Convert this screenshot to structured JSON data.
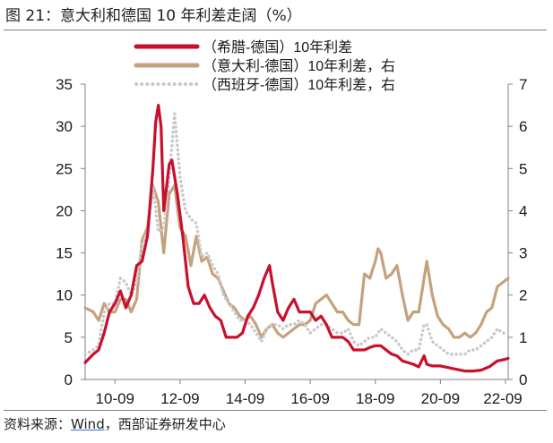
{
  "figure": {
    "title": "图 21：意大利和德国 10 年利差走阔（%）",
    "source_prefix": "资料来源：",
    "source_link": "Wind",
    "source_suffix": "，西部证券研发中心"
  },
  "chart_data": {
    "type": "line",
    "title": "图 21：意大利和德国 10 年利差走阔（%）",
    "x_ticks": [
      "10-09",
      "12-09",
      "14-09",
      "16-09",
      "18-09",
      "20-09",
      "22-09"
    ],
    "x_range": [
      "2009-10",
      "2022-10"
    ],
    "y_left": {
      "min": 0,
      "max": 35,
      "ticks": [
        0,
        5,
        10,
        15,
        20,
        25,
        30,
        35
      ]
    },
    "y_right": {
      "min": 0,
      "max": 7,
      "ticks": [
        0,
        1,
        2,
        3,
        4,
        5,
        6,
        7
      ]
    },
    "grid": false,
    "legend_placement": "top-center",
    "series": [
      {
        "name": "（希腊-德国）10年利差",
        "axis": "left",
        "color": "#c8102e",
        "style": "solid",
        "points": [
          [
            "2009-10",
            2.0
          ],
          [
            "2010-01",
            3.0
          ],
          [
            "2010-03",
            3.5
          ],
          [
            "2010-05",
            5.5
          ],
          [
            "2010-07",
            8.0
          ],
          [
            "2010-09",
            9.0
          ],
          [
            "2010-11",
            10.5
          ],
          [
            "2011-01",
            8.5
          ],
          [
            "2011-03",
            10.0
          ],
          [
            "2011-05",
            13.5
          ],
          [
            "2011-07",
            14.0
          ],
          [
            "2011-09",
            17.0
          ],
          [
            "2011-11",
            25.0
          ],
          [
            "2011-12",
            30.5
          ],
          [
            "2012-01",
            32.5
          ],
          [
            "2012-02",
            30.0
          ],
          [
            "2012-03",
            20.0
          ],
          [
            "2012-05",
            25.5
          ],
          [
            "2012-06",
            26.0
          ],
          [
            "2012-08",
            22.0
          ],
          [
            "2012-10",
            17.0
          ],
          [
            "2012-12",
            11.0
          ],
          [
            "2013-02",
            9.0
          ],
          [
            "2013-04",
            9.0
          ],
          [
            "2013-06",
            10.0
          ],
          [
            "2013-08",
            8.5
          ],
          [
            "2013-10",
            7.5
          ],
          [
            "2013-12",
            7.0
          ],
          [
            "2014-02",
            5.0
          ],
          [
            "2014-04",
            5.0
          ],
          [
            "2014-06",
            5.0
          ],
          [
            "2014-08",
            5.5
          ],
          [
            "2014-10",
            7.5
          ],
          [
            "2014-12",
            8.5
          ],
          [
            "2015-02",
            10.0
          ],
          [
            "2015-04",
            12.0
          ],
          [
            "2015-06",
            13.5
          ],
          [
            "2015-07",
            11.5
          ],
          [
            "2015-09",
            8.0
          ],
          [
            "2015-11",
            7.0
          ],
          [
            "2016-01",
            8.5
          ],
          [
            "2016-03",
            9.5
          ],
          [
            "2016-05",
            8.0
          ],
          [
            "2016-07",
            8.0
          ],
          [
            "2016-09",
            8.0
          ],
          [
            "2016-11",
            7.0
          ],
          [
            "2017-01",
            7.5
          ],
          [
            "2017-03",
            6.5
          ],
          [
            "2017-05",
            5.0
          ],
          [
            "2017-07",
            5.0
          ],
          [
            "2017-09",
            5.0
          ],
          [
            "2017-11",
            4.5
          ],
          [
            "2018-01",
            3.5
          ],
          [
            "2018-03",
            3.5
          ],
          [
            "2018-05",
            3.5
          ],
          [
            "2018-07",
            3.8
          ],
          [
            "2018-09",
            4.0
          ],
          [
            "2018-11",
            4.0
          ],
          [
            "2019-01",
            3.5
          ],
          [
            "2019-03",
            3.0
          ],
          [
            "2019-05",
            2.8
          ],
          [
            "2019-07",
            2.2
          ],
          [
            "2019-09",
            2.0
          ],
          [
            "2019-11",
            1.8
          ],
          [
            "2020-01",
            1.5
          ],
          [
            "2020-03",
            2.8
          ],
          [
            "2020-04",
            1.8
          ],
          [
            "2020-06",
            1.6
          ],
          [
            "2020-09",
            1.6
          ],
          [
            "2020-12",
            1.4
          ],
          [
            "2021-03",
            1.2
          ],
          [
            "2021-06",
            1.0
          ],
          [
            "2021-09",
            1.0
          ],
          [
            "2021-12",
            1.1
          ],
          [
            "2022-03",
            1.5
          ],
          [
            "2022-06",
            2.2
          ],
          [
            "2022-09",
            2.4
          ],
          [
            "2022-10",
            2.5
          ]
        ]
      },
      {
        "name": "（意大利-德国）10年利差，右",
        "axis": "right",
        "color": "#c4a27e",
        "style": "solid",
        "points": [
          [
            "2009-10",
            1.7
          ],
          [
            "2010-01",
            1.6
          ],
          [
            "2010-03",
            1.4
          ],
          [
            "2010-05",
            1.8
          ],
          [
            "2010-07",
            1.6
          ],
          [
            "2010-09",
            1.6
          ],
          [
            "2010-11",
            1.9
          ],
          [
            "2011-01",
            1.9
          ],
          [
            "2011-03",
            1.6
          ],
          [
            "2011-05",
            1.9
          ],
          [
            "2011-07",
            3.3
          ],
          [
            "2011-09",
            3.6
          ],
          [
            "2011-11",
            4.6
          ],
          [
            "2012-01",
            4.2
          ],
          [
            "2012-03",
            3.0
          ],
          [
            "2012-05",
            4.4
          ],
          [
            "2012-07",
            4.6
          ],
          [
            "2012-09",
            3.6
          ],
          [
            "2012-11",
            3.4
          ],
          [
            "2013-01",
            2.7
          ],
          [
            "2013-03",
            3.4
          ],
          [
            "2013-05",
            2.8
          ],
          [
            "2013-07",
            2.9
          ],
          [
            "2013-09",
            2.5
          ],
          [
            "2013-11",
            2.4
          ],
          [
            "2014-01",
            2.1
          ],
          [
            "2014-03",
            1.8
          ],
          [
            "2014-05",
            1.7
          ],
          [
            "2014-07",
            1.5
          ],
          [
            "2014-09",
            1.4
          ],
          [
            "2014-11",
            1.5
          ],
          [
            "2015-01",
            1.3
          ],
          [
            "2015-03",
            1.0
          ],
          [
            "2015-05",
            1.2
          ],
          [
            "2015-07",
            1.3
          ],
          [
            "2015-09",
            1.1
          ],
          [
            "2015-11",
            1.0
          ],
          [
            "2016-01",
            1.1
          ],
          [
            "2016-03",
            1.2
          ],
          [
            "2016-05",
            1.3
          ],
          [
            "2016-07",
            1.3
          ],
          [
            "2016-09",
            1.4
          ],
          [
            "2016-11",
            1.8
          ],
          [
            "2017-01",
            1.9
          ],
          [
            "2017-03",
            2.0
          ],
          [
            "2017-05",
            1.8
          ],
          [
            "2017-07",
            1.6
          ],
          [
            "2017-09",
            1.6
          ],
          [
            "2017-11",
            1.4
          ],
          [
            "2018-01",
            1.3
          ],
          [
            "2018-03",
            1.3
          ],
          [
            "2018-05",
            2.5
          ],
          [
            "2018-07",
            2.4
          ],
          [
            "2018-09",
            2.8
          ],
          [
            "2018-10",
            3.1
          ],
          [
            "2018-11",
            3.0
          ],
          [
            "2019-01",
            2.4
          ],
          [
            "2019-03",
            2.5
          ],
          [
            "2019-05",
            2.7
          ],
          [
            "2019-07",
            2.0
          ],
          [
            "2019-09",
            1.4
          ],
          [
            "2019-11",
            1.6
          ],
          [
            "2020-01",
            1.6
          ],
          [
            "2020-03",
            2.4
          ],
          [
            "2020-04",
            2.8
          ],
          [
            "2020-06",
            2.0
          ],
          [
            "2020-08",
            1.5
          ],
          [
            "2020-10",
            1.3
          ],
          [
            "2020-12",
            1.2
          ],
          [
            "2021-02",
            1.0
          ],
          [
            "2021-04",
            1.0
          ],
          [
            "2021-06",
            1.1
          ],
          [
            "2021-08",
            1.0
          ],
          [
            "2021-10",
            1.1
          ],
          [
            "2021-12",
            1.3
          ],
          [
            "2022-02",
            1.6
          ],
          [
            "2022-04",
            1.7
          ],
          [
            "2022-06",
            2.2
          ],
          [
            "2022-08",
            2.3
          ],
          [
            "2022-10",
            2.4
          ]
        ]
      },
      {
        "name": "（西班牙-德国）10年利差，右",
        "axis": "right",
        "color": "#c9c9c9",
        "style": "dotted",
        "points": [
          [
            "2009-10",
            0.6
          ],
          [
            "2010-01",
            0.7
          ],
          [
            "2010-03",
            0.8
          ],
          [
            "2010-05",
            1.6
          ],
          [
            "2010-07",
            1.8
          ],
          [
            "2010-09",
            1.8
          ],
          [
            "2010-11",
            2.4
          ],
          [
            "2011-01",
            2.3
          ],
          [
            "2011-03",
            2.0
          ],
          [
            "2011-05",
            2.3
          ],
          [
            "2011-07",
            3.2
          ],
          [
            "2011-09",
            3.5
          ],
          [
            "2011-11",
            4.6
          ],
          [
            "2012-01",
            3.5
          ],
          [
            "2012-03",
            3.6
          ],
          [
            "2012-05",
            4.8
          ],
          [
            "2012-07",
            6.3
          ],
          [
            "2012-09",
            4.8
          ],
          [
            "2012-11",
            4.0
          ],
          [
            "2013-01",
            3.8
          ],
          [
            "2013-03",
            3.7
          ],
          [
            "2013-05",
            2.9
          ],
          [
            "2013-07",
            3.0
          ],
          [
            "2013-09",
            2.7
          ],
          [
            "2013-11",
            2.5
          ],
          [
            "2014-01",
            2.0
          ],
          [
            "2014-03",
            1.8
          ],
          [
            "2014-05",
            1.6
          ],
          [
            "2014-07",
            1.4
          ],
          [
            "2014-09",
            1.4
          ],
          [
            "2014-11",
            1.3
          ],
          [
            "2015-01",
            1.1
          ],
          [
            "2015-03",
            0.9
          ],
          [
            "2015-05",
            1.2
          ],
          [
            "2015-07",
            1.3
          ],
          [
            "2015-09",
            1.3
          ],
          [
            "2015-11",
            1.2
          ],
          [
            "2016-01",
            1.3
          ],
          [
            "2016-03",
            1.3
          ],
          [
            "2016-05",
            1.4
          ],
          [
            "2016-07",
            1.3
          ],
          [
            "2016-09",
            1.1
          ],
          [
            "2016-11",
            1.2
          ],
          [
            "2017-01",
            1.3
          ],
          [
            "2017-03",
            1.3
          ],
          [
            "2017-05",
            1.2
          ],
          [
            "2017-07",
            1.1
          ],
          [
            "2017-09",
            1.1
          ],
          [
            "2017-11",
            1.2
          ],
          [
            "2018-01",
            0.9
          ],
          [
            "2018-03",
            0.8
          ],
          [
            "2018-05",
            0.9
          ],
          [
            "2018-07",
            1.0
          ],
          [
            "2018-09",
            1.0
          ],
          [
            "2018-11",
            1.2
          ],
          [
            "2019-01",
            1.1
          ],
          [
            "2019-03",
            1.0
          ],
          [
            "2019-05",
            0.9
          ],
          [
            "2019-07",
            0.7
          ],
          [
            "2019-09",
            0.6
          ],
          [
            "2019-11",
            0.7
          ],
          [
            "2020-01",
            0.7
          ],
          [
            "2020-03",
            1.3
          ],
          [
            "2020-04",
            1.3
          ],
          [
            "2020-06",
            0.9
          ],
          [
            "2020-08",
            0.8
          ],
          [
            "2020-10",
            0.7
          ],
          [
            "2020-12",
            0.6
          ],
          [
            "2021-02",
            0.6
          ],
          [
            "2021-04",
            0.6
          ],
          [
            "2021-06",
            0.6
          ],
          [
            "2021-08",
            0.7
          ],
          [
            "2021-10",
            0.7
          ],
          [
            "2021-12",
            0.8
          ],
          [
            "2022-02",
            0.9
          ],
          [
            "2022-04",
            1.0
          ],
          [
            "2022-06",
            1.2
          ],
          [
            "2022-08",
            1.1
          ],
          [
            "2022-10",
            1.1
          ]
        ]
      }
    ]
  }
}
